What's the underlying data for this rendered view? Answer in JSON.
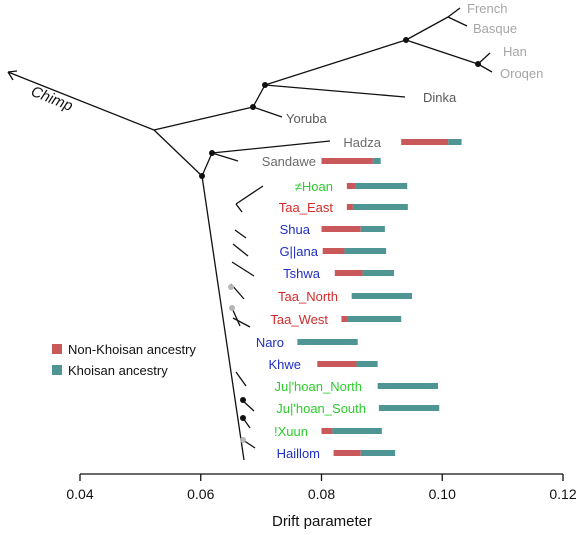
{
  "colors": {
    "non_khoisan": "#c9585b",
    "khoisan": "#4e9593",
    "axis": "#111111",
    "tree": "#111111",
    "out_gray": "#a6a6a6",
    "dark_gray": "#595959",
    "mid_gray": "#6b6b6b",
    "node_black": "#111111",
    "node_gray": "#b5b5b5",
    "red": "#d22b2b",
    "blue": "#1f2fbf",
    "green": "#2ecc2e"
  },
  "chart_data": {
    "type": "tree_with_bars",
    "xlabel": "Drift parameter",
    "xlim": [
      0.04,
      0.12
    ],
    "xticks": [
      0.04,
      0.06,
      0.08,
      0.1,
      0.12
    ],
    "xtick_labels": [
      "0.04",
      "0.06",
      "0.08",
      "0.10",
      "0.12"
    ],
    "legend": {
      "placement": "left-middle",
      "entries": [
        {
          "label": "Non-Khoisan ancestry",
          "color": "non_khoisan"
        },
        {
          "label": "Khoisan ancestry",
          "color": "khoisan"
        }
      ]
    },
    "outgroup": {
      "label": "Chimp",
      "arrow": "left"
    },
    "other_labels": [
      {
        "label": "French",
        "color": "out_gray"
      },
      {
        "label": "Basque",
        "color": "out_gray"
      },
      {
        "label": "Han",
        "color": "out_gray"
      },
      {
        "label": "Oroqen",
        "color": "out_gray"
      },
      {
        "label": "Dinka",
        "color": "dark_gray"
      },
      {
        "label": "Yoruba",
        "color": "dark_gray"
      }
    ],
    "populations": [
      {
        "label": "Hadza",
        "color": "mid_gray",
        "bar_start": 0.0932,
        "bar_split": 0.101,
        "bar_end": 0.1032
      },
      {
        "label": "Sandawe",
        "color": "mid_gray",
        "bar_start": 0.08,
        "bar_split": 0.0885,
        "bar_end": 0.0898
      },
      {
        "label": "≠Hoan",
        "color": "green",
        "bar_start": 0.0842,
        "bar_split": 0.0857,
        "bar_end": 0.0942
      },
      {
        "label": "Taa_East",
        "color": "red",
        "bar_start": 0.0842,
        "bar_split": 0.0852,
        "bar_end": 0.0943
      },
      {
        "label": "Shua",
        "color": "blue",
        "bar_start": 0.08,
        "bar_split": 0.0865,
        "bar_end": 0.0905
      },
      {
        "label": "G||ana",
        "color": "blue",
        "bar_start": 0.0802,
        "bar_split": 0.0838,
        "bar_end": 0.0907
      },
      {
        "label": "Tshwa",
        "color": "blue",
        "bar_start": 0.0822,
        "bar_split": 0.0868,
        "bar_end": 0.092
      },
      {
        "label": "Taa_North",
        "color": "red",
        "bar_start": 0.085,
        "bar_split": 0.085,
        "bar_end": 0.095
      },
      {
        "label": "Taa_West",
        "color": "red",
        "bar_start": 0.0833,
        "bar_split": 0.0843,
        "bar_end": 0.0932
      },
      {
        "label": "Naro",
        "color": "blue",
        "bar_start": 0.076,
        "bar_split": 0.076,
        "bar_end": 0.086
      },
      {
        "label": "Khwe",
        "color": "blue",
        "bar_start": 0.0793,
        "bar_split": 0.0858,
        "bar_end": 0.0893
      },
      {
        "label": "Ju|'hoan_North",
        "color": "green",
        "bar_start": 0.0893,
        "bar_split": 0.0893,
        "bar_end": 0.0993
      },
      {
        "label": "Ju|'hoan_South",
        "color": "green",
        "bar_start": 0.0895,
        "bar_split": 0.0895,
        "bar_end": 0.0995
      },
      {
        "label": "!Xuun",
        "color": "green",
        "bar_start": 0.08,
        "bar_split": 0.0818,
        "bar_end": 0.09
      },
      {
        "label": "Haillom",
        "color": "blue",
        "bar_start": 0.082,
        "bar_split": 0.0865,
        "bar_end": 0.0922
      }
    ]
  }
}
